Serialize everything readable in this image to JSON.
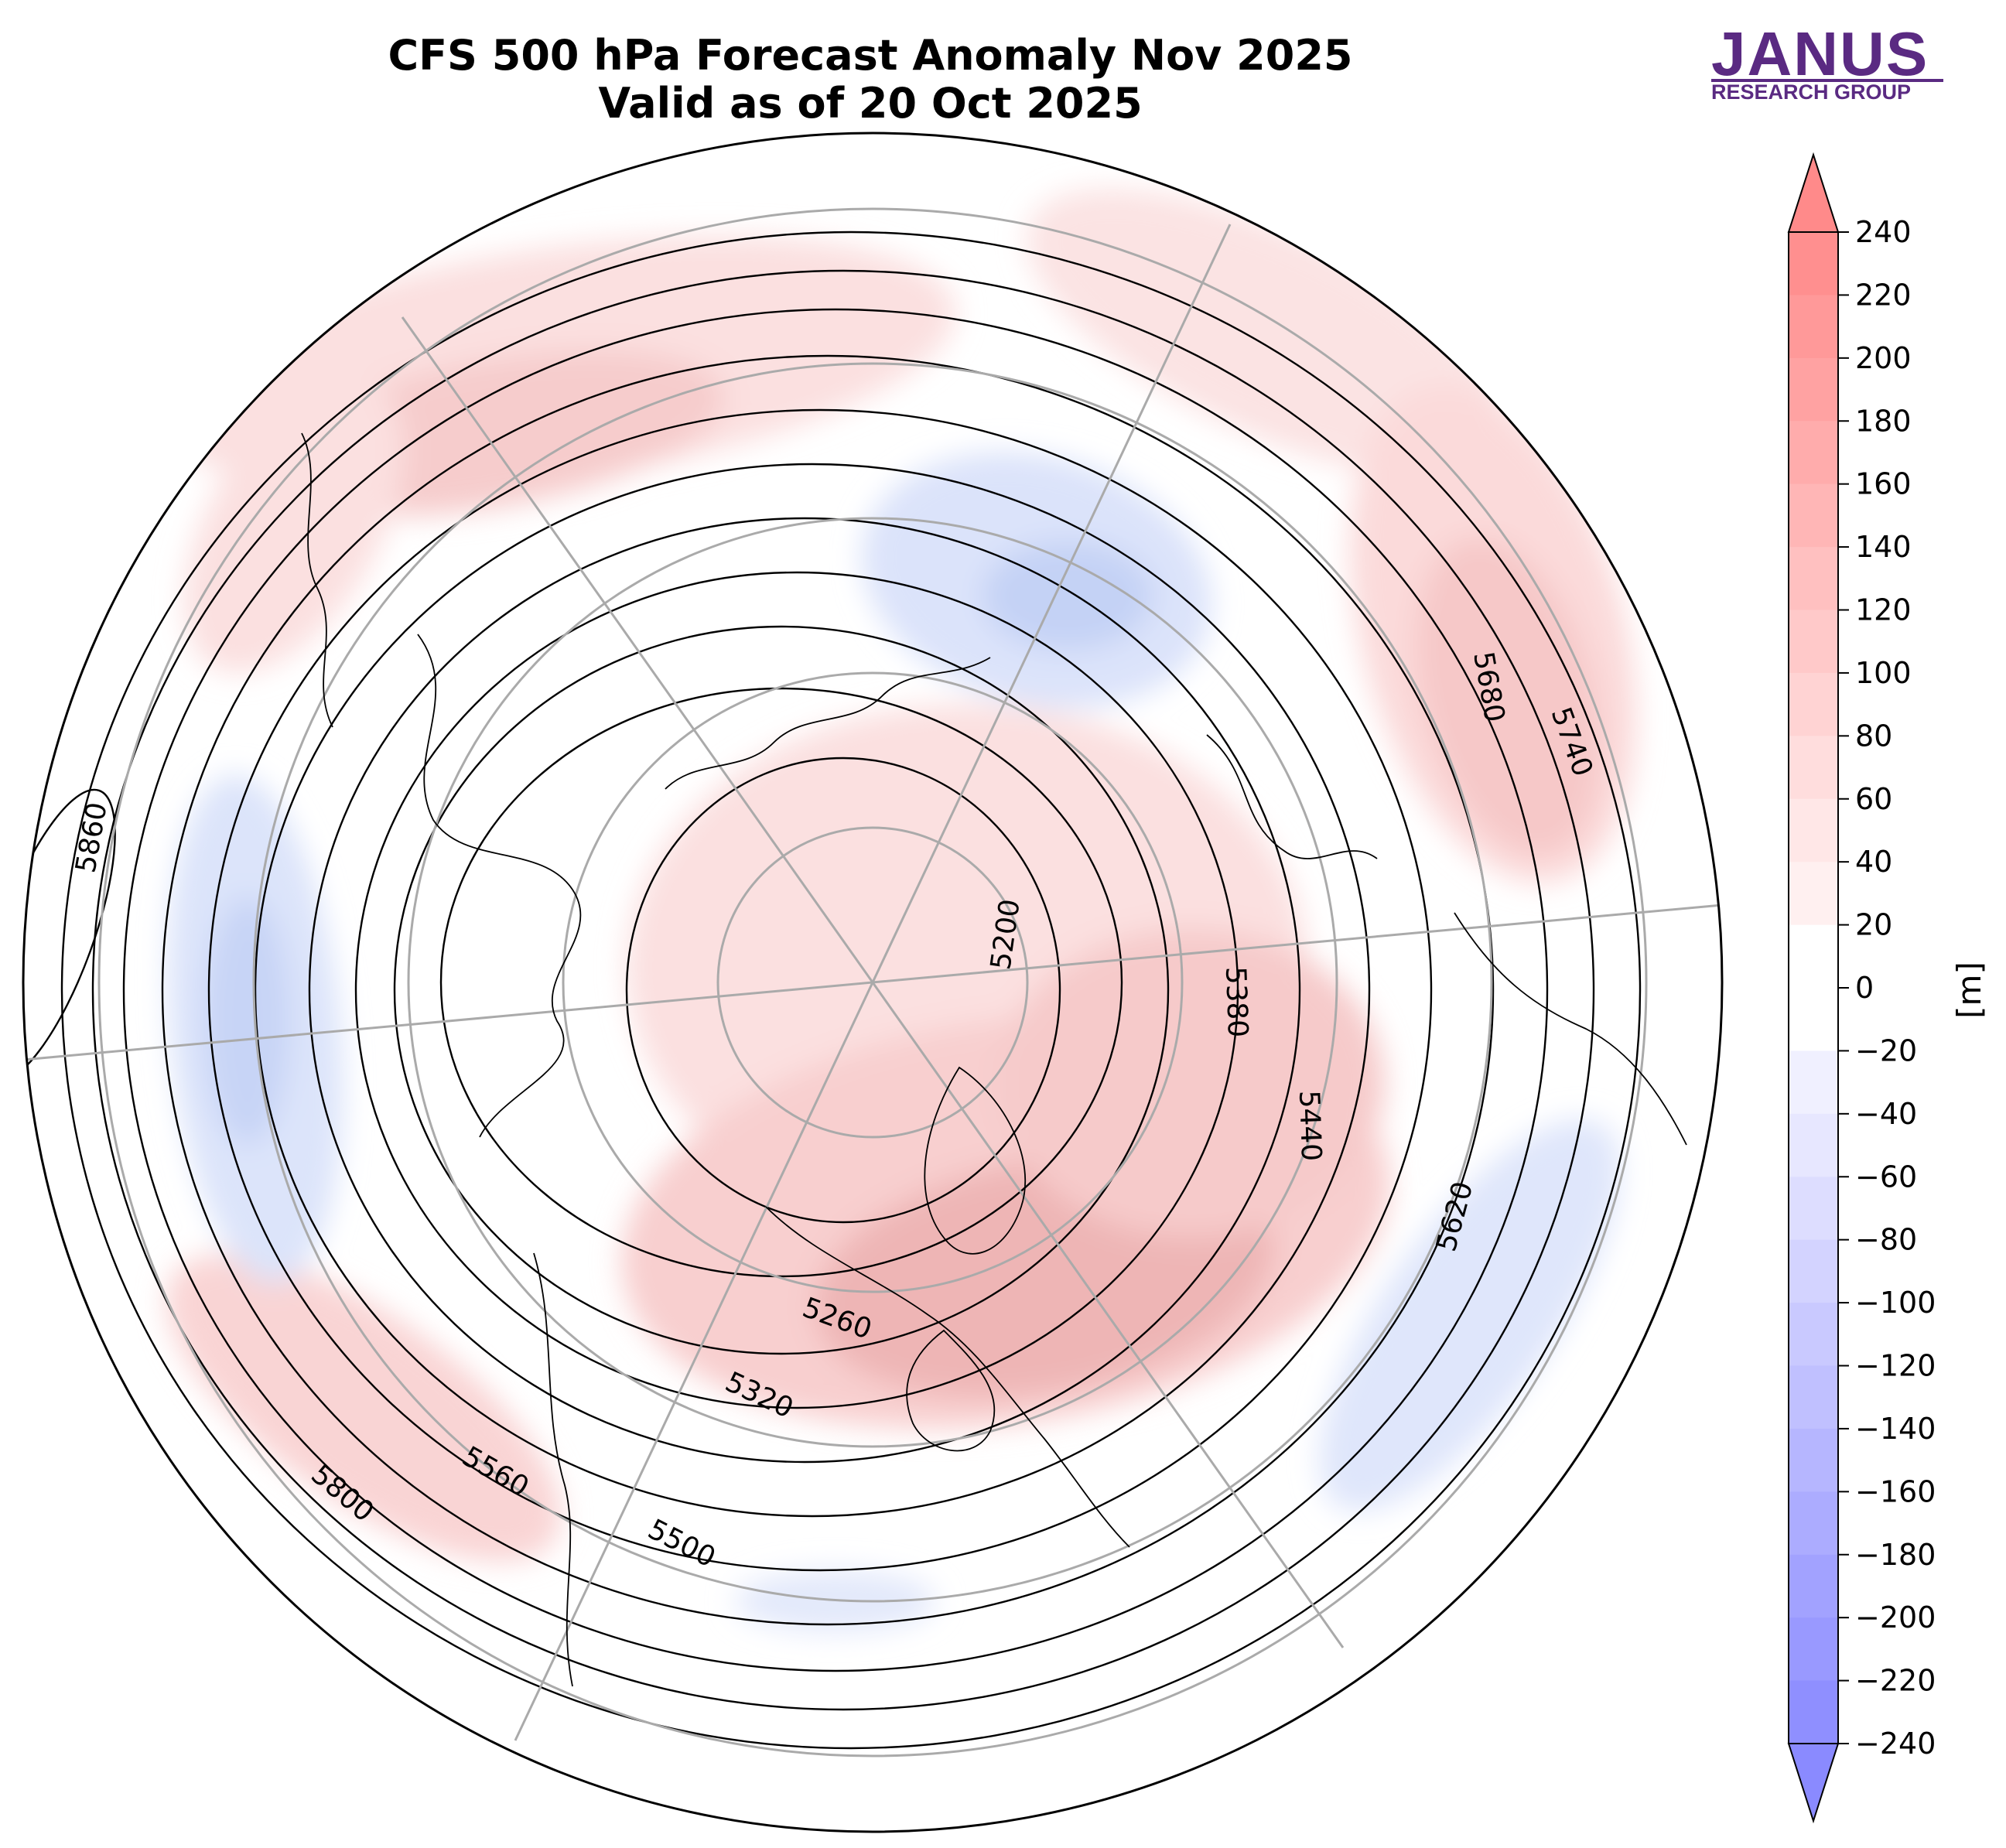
{
  "header": {
    "title_line1": "CFS 500 hPa Forecast Anomaly Nov 2025",
    "title_line2": "Valid as of 20 Oct 2025"
  },
  "logo": {
    "main": "JANUS",
    "sub": "RESEARCH GROUP",
    "color": "#5a2a82"
  },
  "colorbar": {
    "unit": "[m]",
    "ticks": [
      240,
      220,
      200,
      180,
      160,
      140,
      120,
      100,
      80,
      60,
      40,
      20,
      0,
      -20,
      -40,
      -60,
      -80,
      -100,
      -120,
      -140,
      -160,
      -180,
      -200,
      -220,
      -240
    ],
    "tick_labels": [
      "240",
      "220",
      "200",
      "180",
      "160",
      "140",
      "120",
      "100",
      "80",
      "60",
      "40",
      "20",
      "0",
      "−20",
      "−40",
      "−60",
      "−80",
      "−100",
      "−120",
      "−140",
      "−160",
      "−180",
      "−200",
      "−220",
      "−240"
    ],
    "positive_color": "#ff8a8a",
    "negative_color": "#8a8aff",
    "neutral_color": "#ffffff",
    "extend": "both"
  },
  "map": {
    "projection": "north polar stereographic",
    "contour_labels": [
      "5860",
      "5200",
      "5380",
      "5440",
      "5620",
      "5680",
      "5740",
      "5260",
      "5320",
      "5560",
      "5500",
      "5800"
    ],
    "anomaly_colors": {
      "pos_light": "#fde6e6",
      "pos_mid": "#f8cccc",
      "pos_strong": "#eeb4b4",
      "neg_light": "#e6eafc",
      "neg_mid": "#d2dcf8",
      "neg_strong": "#bcccf4"
    }
  }
}
